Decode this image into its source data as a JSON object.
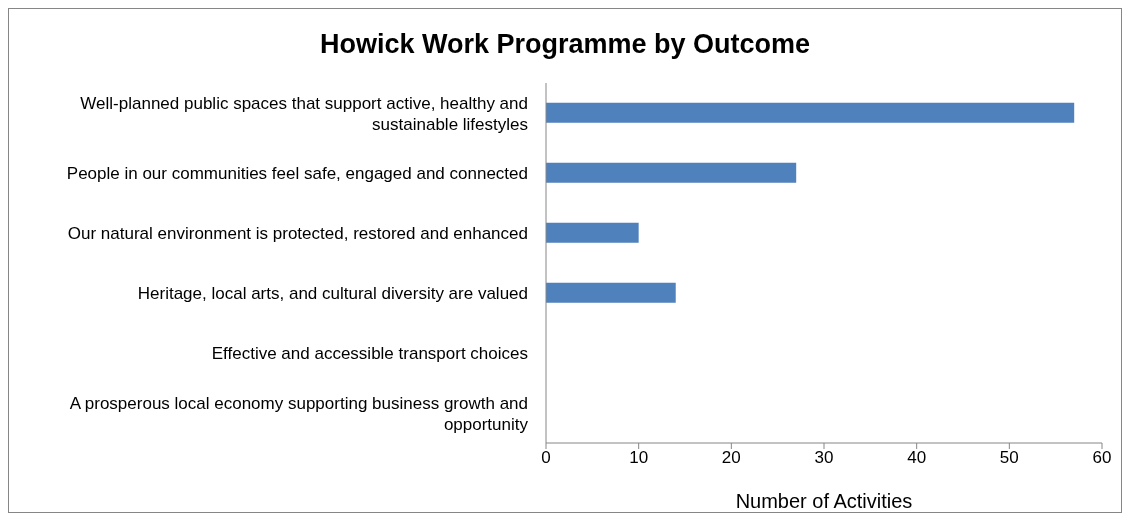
{
  "chart_data": {
    "type": "bar",
    "orientation": "horizontal",
    "title": "Howick Work Programme by Outcome",
    "xlabel": "Number of Activities",
    "categories": [
      "Well-planned public spaces that support active, healthy and sustainable lifestyles",
      "People in our communities feel safe, engaged and connected",
      "Our natural environment is protected, restored and enhanced",
      "Heritage, local arts, and cultural diversity are valued",
      "Effective and accessible transport choices",
      "A prosperous local economy supporting business growth and opportunity"
    ],
    "values": [
      57,
      27,
      10,
      14,
      0,
      0
    ],
    "color": "#4f81bd",
    "xlim": [
      0,
      60
    ],
    "xticks": [
      0,
      10,
      20,
      30,
      40,
      50,
      60
    ],
    "grid": false,
    "legend": false
  }
}
